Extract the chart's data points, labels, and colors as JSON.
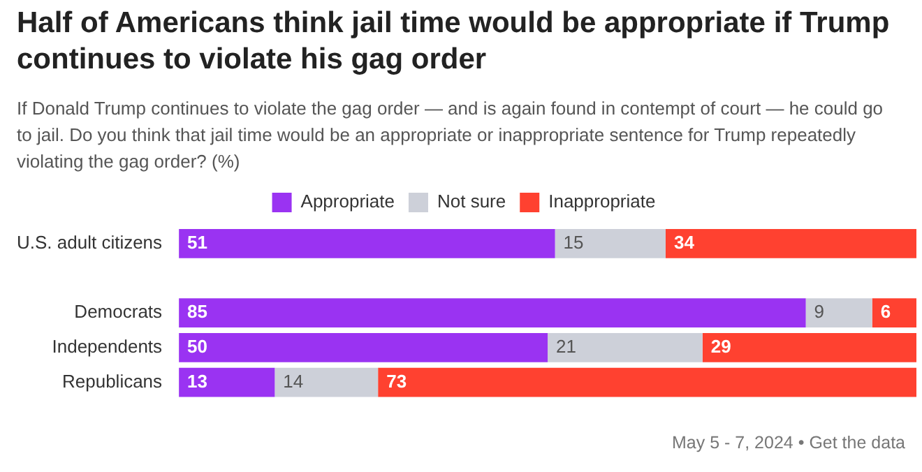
{
  "chart_data": {
    "type": "bar",
    "orientation": "horizontal",
    "stacked": true,
    "title": "Half of Americans think jail time would be appropriate if Trump continues to violate his gag order",
    "subtitle": "If Donald Trump continues to violate the gag order — and is again found in contempt of court — he could go to jail. Do you think that jail time would be an appropriate or inappropriate sentence for Trump repeatedly violating the gag order? (%)",
    "categories": [
      "U.S. adult citizens",
      null,
      "Democrats",
      "Independents",
      "Republicans"
    ],
    "series": [
      {
        "name": "Appropriate",
        "color": "#9a33f2",
        "values": [
          51,
          null,
          85,
          50,
          13
        ]
      },
      {
        "name": "Not sure",
        "color": "#cdd0d9",
        "values": [
          15,
          null,
          9,
          21,
          14
        ]
      },
      {
        "name": "Inappropriate",
        "color": "#ff4130",
        "values": [
          34,
          null,
          6,
          29,
          73
        ]
      }
    ],
    "xlim": [
      0,
      100
    ],
    "tick_labels": "y",
    "legend": "top",
    "data_labels": true,
    "annotations": [
      "May 5 - 7, 2024 • Get the data"
    ]
  }
}
